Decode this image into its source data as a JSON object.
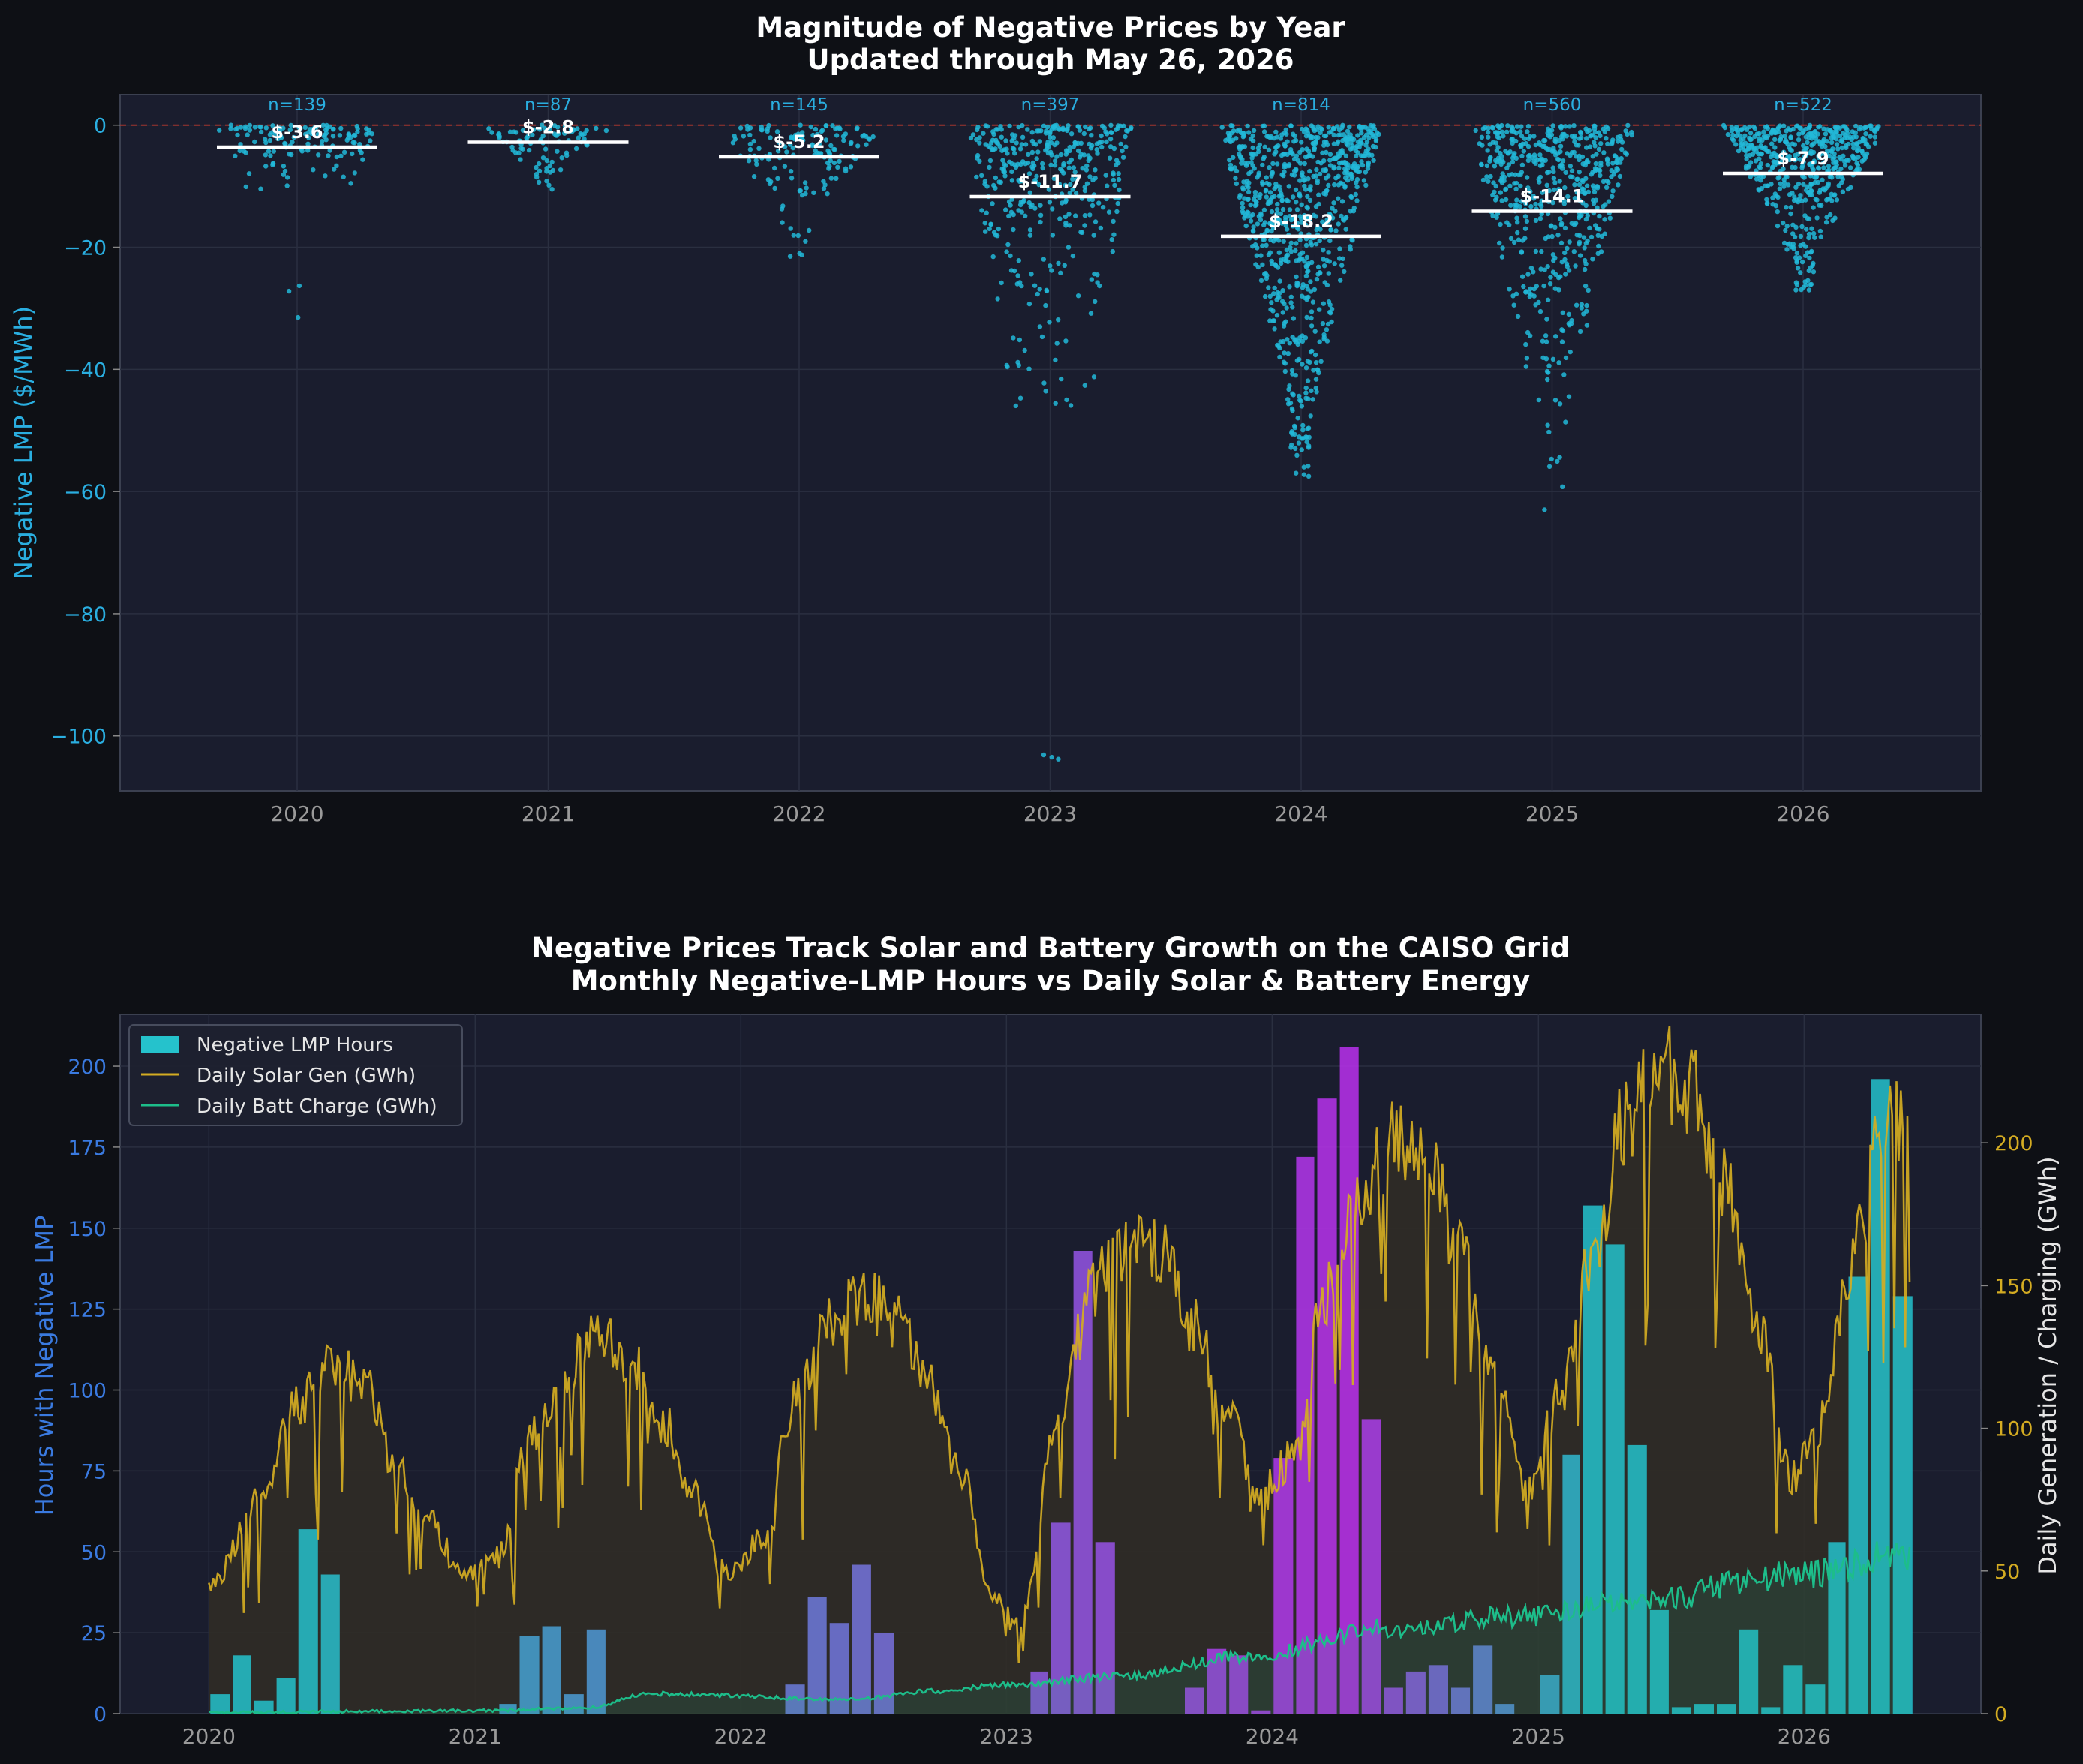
{
  "chart_data": [
    {
      "type": "scatter",
      "title": "Magnitude of Negative Prices by Year",
      "subtitle": "Updated through May 26, 2026",
      "xlabel": "",
      "ylabel": "Negative LMP ($/MWh)",
      "ylim": [
        -109,
        5
      ],
      "yticks": [
        0,
        -20,
        -40,
        -60,
        -80,
        -100
      ],
      "grid": true,
      "categories": [
        "2020",
        "2021",
        "2022",
        "2023",
        "2024",
        "2025",
        "2026"
      ],
      "counts": [
        "n=139",
        "n=87",
        "n=145",
        "n=397",
        "n=814",
        "n=560",
        "n=522"
      ],
      "n": [
        139,
        87,
        145,
        397,
        814,
        560,
        522
      ],
      "means": [
        -3.6,
        -2.8,
        -5.2,
        -11.7,
        -18.2,
        -14.1,
        -7.9
      ],
      "mean_labels": [
        "$-3.6",
        "$-2.8",
        "$-5.2",
        "$-11.7",
        "$-18.2",
        "$-14.1",
        "$-7.9"
      ],
      "min_values": [
        -31.5,
        -10.5,
        -21.5,
        -103.8,
        -57.5,
        -63,
        -27
      ],
      "zero_line": 0,
      "colors": {
        "points": "#22b8d8",
        "mean": "#ffffff",
        "zero": "#c0392b"
      }
    },
    {
      "type": "bar",
      "title": "Negative Prices Track Solar and Battery Growth on the CAISO Grid",
      "subtitle": "Monthly Negative-LMP Hours vs Daily Solar & Battery Energy",
      "xlabel": "",
      "ylabel": "Hours with Negative LMP",
      "y2label": "Daily Generation / Charging (GWh)",
      "ylim": [
        0,
        216
      ],
      "y2lim": [
        0,
        245
      ],
      "yticks": [
        0,
        25,
        50,
        75,
        100,
        125,
        150,
        175,
        200
      ],
      "y2ticks": [
        0,
        50,
        100,
        150,
        200
      ],
      "xticks": [
        "2020",
        "2021",
        "2022",
        "2023",
        "2024",
        "2025",
        "2026"
      ],
      "xlim": [
        "2019-09-01",
        "2026-09-01"
      ],
      "legend_position": "top-left",
      "legend": [
        "Negative LMP Hours",
        "Daily Solar Gen (GWh)",
        "Daily Batt Charge (GWh)"
      ],
      "months": [
        "2020-01",
        "2020-02",
        "2020-03",
        "2020-04",
        "2020-05",
        "2020-06",
        "2020-07",
        "2020-08",
        "2020-09",
        "2020-10",
        "2020-11",
        "2020-12",
        "2021-01",
        "2021-02",
        "2021-03",
        "2021-04",
        "2021-05",
        "2021-06",
        "2021-07",
        "2021-08",
        "2021-09",
        "2021-10",
        "2021-11",
        "2021-12",
        "2022-01",
        "2022-02",
        "2022-03",
        "2022-04",
        "2022-05",
        "2022-06",
        "2022-07",
        "2022-08",
        "2022-09",
        "2022-10",
        "2022-11",
        "2022-12",
        "2023-01",
        "2023-02",
        "2023-03",
        "2023-04",
        "2023-05",
        "2023-06",
        "2023-07",
        "2023-08",
        "2023-09",
        "2023-10",
        "2023-11",
        "2023-12",
        "2024-01",
        "2024-02",
        "2024-03",
        "2024-04",
        "2024-05",
        "2024-06",
        "2024-07",
        "2024-08",
        "2024-09",
        "2024-10",
        "2024-11",
        "2024-12",
        "2025-01",
        "2025-02",
        "2025-03",
        "2025-04",
        "2025-05",
        "2025-06",
        "2025-07",
        "2025-08",
        "2025-09",
        "2025-10",
        "2025-11",
        "2025-12",
        "2026-01",
        "2026-02",
        "2026-03",
        "2026-04",
        "2026-05"
      ],
      "neg_hours": [
        6,
        18,
        4,
        11,
        57,
        43,
        0,
        0,
        0,
        0,
        0,
        0,
        0,
        3,
        24,
        27,
        6,
        26,
        0,
        0,
        0,
        0,
        0,
        0,
        0,
        0,
        9,
        36,
        28,
        46,
        25,
        0,
        0,
        0,
        0,
        0,
        0,
        13,
        59,
        143,
        53,
        0,
        0,
        0,
        8,
        20,
        18,
        1,
        79,
        172,
        190,
        206,
        91,
        8,
        13,
        15,
        8,
        21,
        3,
        0,
        12,
        80,
        157,
        145,
        83,
        32,
        2,
        3,
        3,
        26,
        2,
        15,
        9,
        53,
        135,
        196,
        129
      ],
      "bar_colors": {
        "start": "#25c2cc",
        "mid": "#bb30ee"
      },
      "solar_anchors": [
        [
          "2020-01-01",
          45
        ],
        [
          "2020-03-15",
          75
        ],
        [
          "2020-05-01",
          108
        ],
        [
          "2020-06-20",
          122
        ],
        [
          "2020-08-01",
          115
        ],
        [
          "2020-09-15",
          85
        ],
        [
          "2020-10-30",
          68
        ],
        [
          "2020-12-15",
          48
        ],
        [
          "2021-02-01",
          55
        ],
        [
          "2021-03-15",
          95
        ],
        [
          "2021-05-01",
          118
        ],
        [
          "2021-06-20",
          132
        ],
        [
          "2021-08-01",
          125
        ],
        [
          "2021-09-15",
          103
        ],
        [
          "2021-10-30",
          76
        ],
        [
          "2021-12-15",
          48
        ],
        [
          "2022-02-01",
          62
        ],
        [
          "2022-03-15",
          108
        ],
        [
          "2022-05-01",
          135
        ],
        [
          "2022-06-20",
          147
        ],
        [
          "2022-08-01",
          138
        ],
        [
          "2022-09-15",
          115
        ],
        [
          "2022-10-30",
          85
        ],
        [
          "2022-12-15",
          40
        ],
        [
          "2023-01-20",
          32
        ],
        [
          "2023-03-15",
          105
        ],
        [
          "2023-05-01",
          150
        ],
        [
          "2023-06-20",
          165
        ],
        [
          "2023-08-01",
          160
        ],
        [
          "2023-09-15",
          135
        ],
        [
          "2023-10-30",
          105
        ],
        [
          "2023-12-15",
          78
        ],
        [
          "2024-02-01",
          90
        ],
        [
          "2024-03-15",
          148
        ],
        [
          "2024-05-01",
          185
        ],
        [
          "2024-06-20",
          200
        ],
        [
          "2024-08-01",
          192
        ],
        [
          "2024-09-15",
          162
        ],
        [
          "2024-10-30",
          120
        ],
        [
          "2024-12-15",
          78
        ],
        [
          "2025-02-01",
          112
        ],
        [
          "2025-03-15",
          158
        ],
        [
          "2025-05-01",
          208
        ],
        [
          "2025-06-20",
          225
        ],
        [
          "2025-08-01",
          218
        ],
        [
          "2025-09-15",
          185
        ],
        [
          "2025-10-30",
          135
        ],
        [
          "2025-12-15",
          82
        ],
        [
          "2026-01-20",
          100
        ],
        [
          "2026-03-15",
          165
        ],
        [
          "2026-04-20",
          210
        ],
        [
          "2026-05-26",
          205
        ]
      ],
      "batt_anchors": [
        [
          "2020-01-01",
          0.5
        ],
        [
          "2021-01-01",
          1
        ],
        [
          "2021-06-01",
          2
        ],
        [
          "2021-09-01",
          7
        ],
        [
          "2022-06-01",
          5
        ],
        [
          "2022-10-01",
          8
        ],
        [
          "2023-01-01",
          10
        ],
        [
          "2023-06-01",
          13
        ],
        [
          "2023-12-01",
          20
        ],
        [
          "2024-06-01",
          30
        ],
        [
          "2024-12-01",
          34
        ],
        [
          "2025-06-01",
          40
        ],
        [
          "2025-12-01",
          48
        ],
        [
          "2026-05-26",
          56
        ]
      ],
      "series_colors": {
        "solar": "#d4ac22",
        "solar_fill": "#302c26",
        "battery": "#1dbd8a"
      }
    }
  ]
}
